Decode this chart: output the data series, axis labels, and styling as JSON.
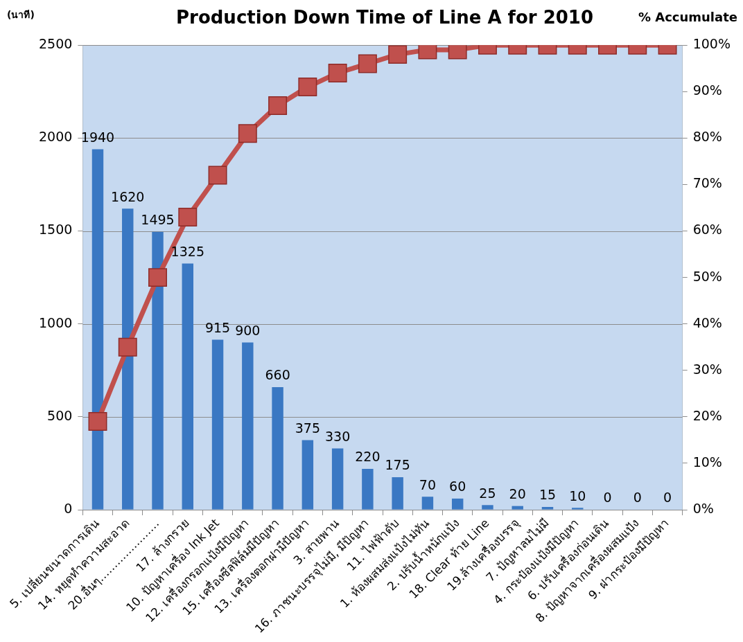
{
  "chart_data": {
    "type": "bar",
    "title": "Production Down Time of Line A for 2010",
    "ylabel": "(นาที)",
    "y2label": "% Accumulate",
    "categories": [
      "5. เปลี่ยนขนาดการเดิน",
      "14. หยุดทำความสะอาด",
      "20.อื่นๆ…………………",
      "17. ล้างกรวย",
      "10. ปัญหาเครื่อง Ink Jet",
      "12. เครื่องกรอกแป้งมีปัญหา",
      "15. เครื่องซีลฟิล์มมีปัญหา",
      "13. เครื่องตอกฝามีปัญหา",
      "3. สายพาน",
      "16. ภาชนะบรรจุไม่มี, มีปัญหา",
      "11. ไฟฟ้าดับ",
      "1. ห้องผสมส่งแป้งไม่ทัน",
      "2. ปรับน้ำหนักแป้ง",
      "18. Clear ท้าย Line",
      "19.ล้างเครื่องบรรจุ",
      "7. ปัญหาลมไม่มี",
      "4. กระป๋องแป้งมีปัญหา",
      "6. ปรับเครื่องก่อนเดิน",
      "8. ปัญหาจากเครื่องผสมแป้ง",
      "9. ฝากระป๋องมีปัญหา"
    ],
    "series": [
      {
        "color": "#3a78c3",
        "values": [
          1940,
          1620,
          1495,
          1325,
          915,
          900,
          660,
          375,
          330,
          220,
          175,
          70,
          60,
          25,
          20,
          15,
          10,
          0,
          0,
          0
        ],
        "value_labels": [
          "1940",
          "1620",
          "1495",
          "1325",
          "915",
          "900",
          "660",
          "375",
          "330",
          "220",
          "175",
          "70",
          "60",
          "25",
          "20",
          "15",
          "10",
          "0",
          "0",
          "0"
        ]
      },
      {
        "type": "line",
        "axis": "y2",
        "color": "#c0504d",
        "values": [
          19,
          35,
          50,
          63,
          72,
          81,
          87,
          91,
          94,
          96,
          98,
          99,
          99,
          100,
          100,
          100,
          100,
          100,
          100,
          100
        ]
      }
    ],
    "ylim": [
      0,
      2500
    ],
    "yticks": [
      0,
      500,
      1000,
      1500,
      2000,
      2500
    ],
    "y2lim": [
      0,
      100
    ],
    "y2ticks": [
      {
        "value": 0,
        "label": "0%"
      },
      {
        "value": 10,
        "label": "10%"
      },
      {
        "value": 20,
        "label": "20%"
      },
      {
        "value": 30,
        "label": "30%"
      },
      {
        "value": 40,
        "label": "40%"
      },
      {
        "value": 50,
        "label": "50%"
      },
      {
        "value": 60,
        "label": "60%"
      },
      {
        "value": 70,
        "label": "70%"
      },
      {
        "value": 80,
        "label": "80%"
      },
      {
        "value": 90,
        "label": "90%"
      },
      {
        "value": 100,
        "label": "100%"
      }
    ],
    "grid": "y",
    "marker": "square"
  }
}
